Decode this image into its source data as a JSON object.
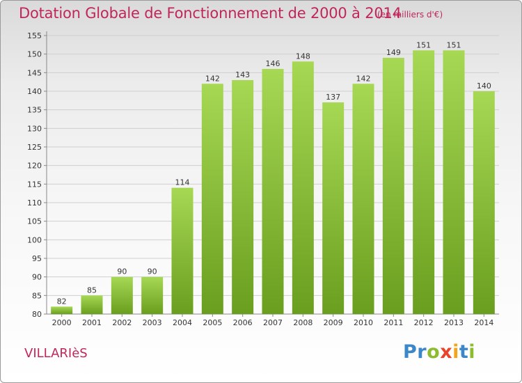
{
  "header": {
    "title": "Dotation Globale de Fonctionnement de 2000 à 2014",
    "subtitle": "(en milliers d'€)"
  },
  "footer": {
    "commune": "VILLARIèS",
    "logo_letters": [
      {
        "ch": "P",
        "color": "#3b87c8"
      },
      {
        "ch": "r",
        "color": "#3b87c8"
      },
      {
        "ch": "o",
        "color": "#8dbd2e"
      },
      {
        "ch": "x",
        "color": "#e8442c"
      },
      {
        "ch": "i",
        "color": "#f2a51a"
      },
      {
        "ch": "t",
        "color": "#3b87c8"
      },
      {
        "ch": "i",
        "color": "#8dbd2e"
      }
    ]
  },
  "colors": {
    "bar_top": "#a6d854",
    "bar_bottom": "#6a9e1e",
    "grid": "#cfcfcf",
    "axis": "#888888",
    "title": "#c0265a"
  },
  "chart_data": {
    "type": "bar",
    "title": "Dotation Globale de Fonctionnement de 2000 à 2014",
    "subtitle": "(en milliers d'€)",
    "categories": [
      "2000",
      "2001",
      "2002",
      "2003",
      "2004",
      "2005",
      "2006",
      "2007",
      "2008",
      "2009",
      "2010",
      "2011",
      "2012",
      "2013",
      "2014"
    ],
    "values": [
      82,
      85,
      90,
      90,
      114,
      142,
      143,
      146,
      148,
      137,
      142,
      149,
      151,
      151,
      140
    ],
    "xlabel": "",
    "ylabel": "",
    "ylim": [
      80,
      155
    ],
    "yticks": [
      80,
      85,
      90,
      95,
      100,
      105,
      110,
      115,
      120,
      125,
      130,
      135,
      140,
      145,
      150,
      155
    ],
    "grid": true,
    "legend": "none"
  }
}
